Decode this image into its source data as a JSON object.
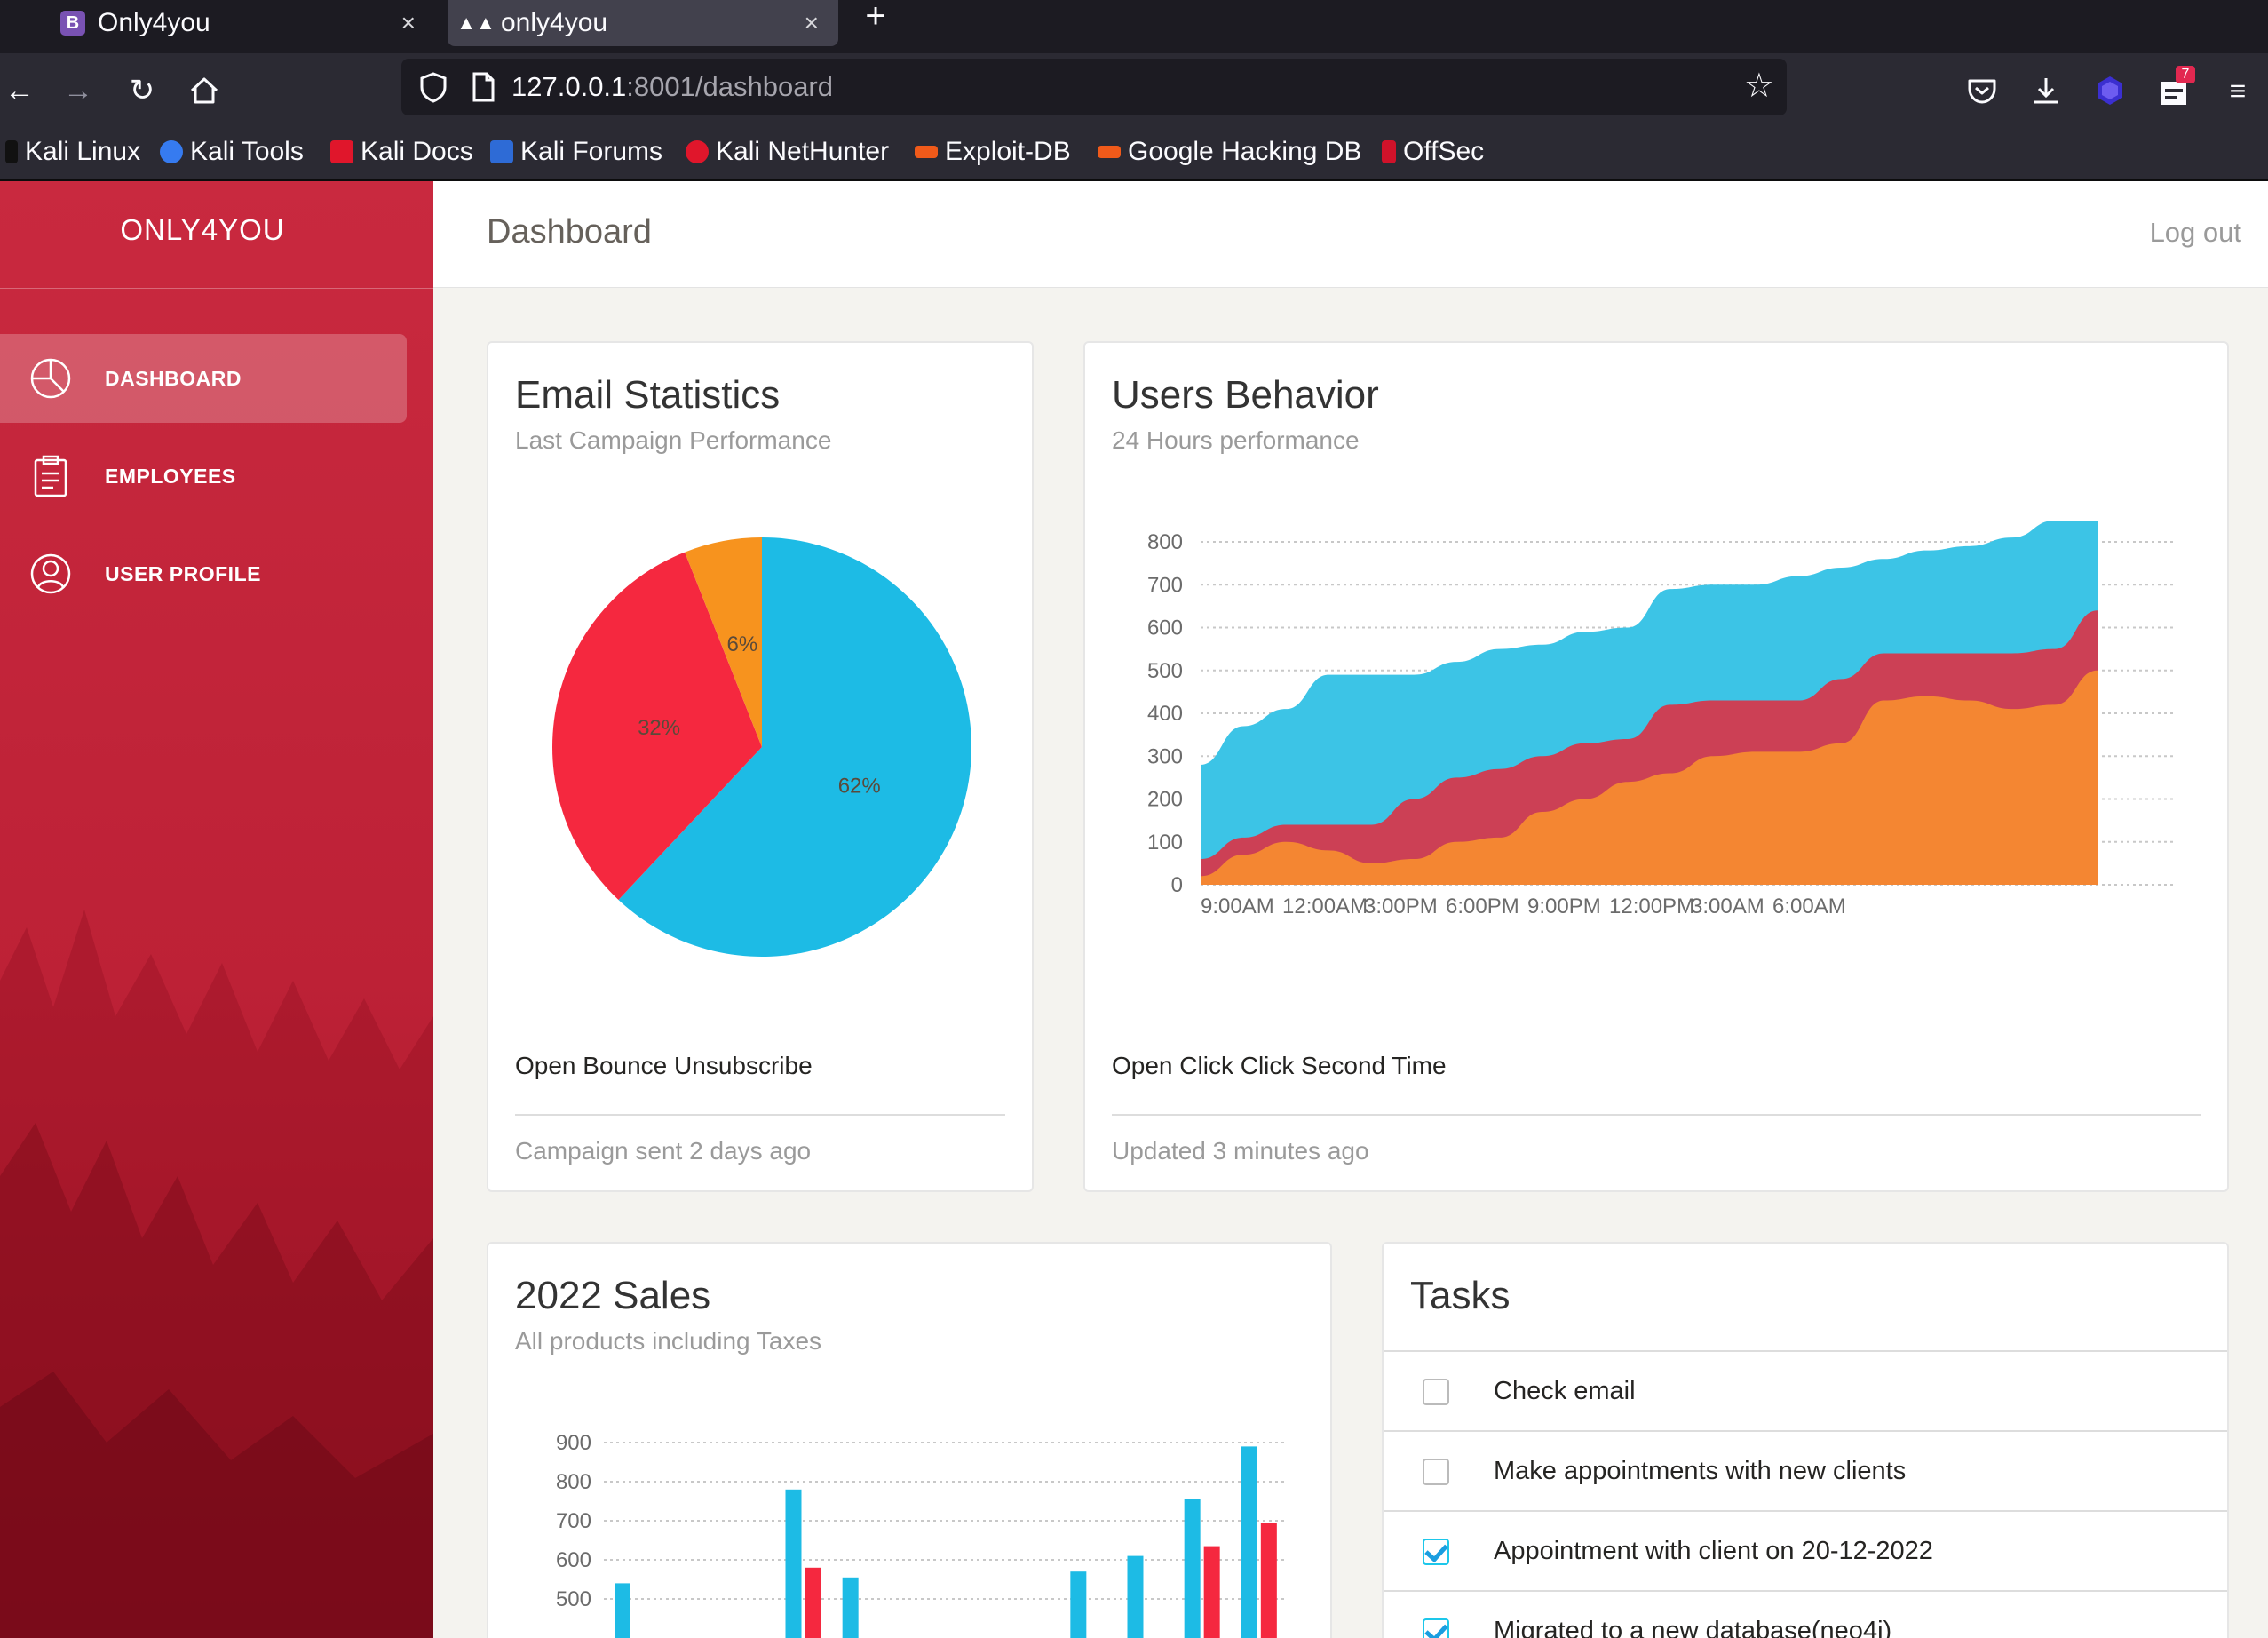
{
  "browser": {
    "tabs": [
      {
        "label": "Only4you",
        "favicon": "bootstrap-icon",
        "active": false
      },
      {
        "label": "only4you",
        "favicon": "mask-icon",
        "active": true
      }
    ],
    "tab_close_glyph": "×",
    "new_tab_glyph": "+",
    "url_host": "127.0.0.1",
    "url_rest": ":8001/dashboard",
    "extension_badge": "7",
    "bookmarks": [
      "Kali Linux",
      "Kali Tools",
      "Kali Docs",
      "Kali Forums",
      "Kali NetHunter",
      "Exploit-DB",
      "Google Hacking DB",
      "OffSec"
    ]
  },
  "sidebar": {
    "brand": "ONLY4YOU",
    "items": [
      {
        "label": "DASHBOARD",
        "icon": "pie-chart-icon",
        "active": true
      },
      {
        "label": "EMPLOYEES",
        "icon": "clipboard-icon",
        "active": false
      },
      {
        "label": "USER PROFILE",
        "icon": "user-icon",
        "active": false
      }
    ]
  },
  "topbar": {
    "title": "Dashboard",
    "logout": "Log out"
  },
  "email_card": {
    "title": "Email Statistics",
    "subtitle": "Last Campaign Performance",
    "legend": "Open Bounce Unsubscribe",
    "footer": "Campaign sent 2 days ago"
  },
  "users_card": {
    "title": "Users Behavior",
    "subtitle": "24 Hours performance",
    "legend": "Open Click Click Second Time",
    "footer": "Updated 3 minutes ago"
  },
  "sales_card": {
    "title": "2022 Sales",
    "subtitle": "All products including Taxes"
  },
  "tasks_card": {
    "title": "Tasks",
    "items": [
      {
        "label": "Check email",
        "checked": false
      },
      {
        "label": "Make appointments with new clients",
        "checked": false
      },
      {
        "label": "Appointment with client on 20-12-2022",
        "checked": true
      },
      {
        "label": "Migrated to a new database(neo4j)",
        "checked": true
      }
    ]
  },
  "colors": {
    "open": "#1dbbe5",
    "bounce": "#f5283f",
    "unsubscribe": "#f7931e",
    "area_orange": "#f48632",
    "area_red": "#cc4055",
    "area_blue": "#3cc4e6",
    "sidebar": "#c9293f"
  },
  "chart_data": [
    {
      "id": "email",
      "type": "pie",
      "labels": [
        "62%",
        "32%",
        "6%"
      ],
      "values": [
        62,
        32,
        6
      ],
      "colors": [
        "#1dbbe5",
        "#f5283f",
        "#f7931e"
      ]
    },
    {
      "id": "users",
      "type": "area",
      "categories": [
        "9:00AM",
        "12:00AM",
        "3:00PM",
        "6:00PM",
        "9:00PM",
        "12:00PM",
        "3:00AM",
        "6:00AM"
      ],
      "ylim": [
        0,
        800
      ],
      "yticks": [
        0,
        100,
        200,
        300,
        400,
        500,
        600,
        700,
        800
      ],
      "x": [
        0,
        1,
        2,
        3,
        4,
        5,
        6,
        7,
        8,
        9,
        10,
        11,
        12,
        13,
        14,
        15,
        16,
        17,
        18,
        19,
        20,
        21
      ],
      "series": [
        {
          "color": "#f48632",
          "values": [
            20,
            70,
            100,
            80,
            50,
            60,
            100,
            110,
            170,
            200,
            240,
            260,
            300,
            310,
            310,
            330,
            430,
            440,
            430,
            410,
            420,
            500
          ]
        },
        {
          "color": "#cc4055",
          "values": [
            60,
            110,
            140,
            140,
            140,
            200,
            250,
            270,
            300,
            330,
            340,
            420,
            430,
            430,
            430,
            480,
            540,
            540,
            540,
            540,
            550,
            640
          ]
        },
        {
          "color": "#3cc4e6",
          "values": [
            280,
            370,
            410,
            490,
            490,
            490,
            520,
            550,
            560,
            590,
            600,
            690,
            700,
            700,
            720,
            740,
            760,
            780,
            790,
            810,
            850,
            860
          ]
        }
      ]
    },
    {
      "id": "sales",
      "type": "bar",
      "ylim": [
        0,
        900
      ],
      "yticks": [
        500,
        600,
        700,
        800,
        900
      ],
      "series": [
        {
          "color": "#1dbbe5",
          "values": [
            540,
            0,
            0,
            780,
            555,
            0,
            0,
            0,
            570,
            610,
            755,
            890
          ]
        },
        {
          "color": "#f5283f",
          "values": [
            0,
            0,
            0,
            580,
            0,
            0,
            0,
            0,
            0,
            0,
            635,
            695
          ]
        }
      ]
    }
  ]
}
